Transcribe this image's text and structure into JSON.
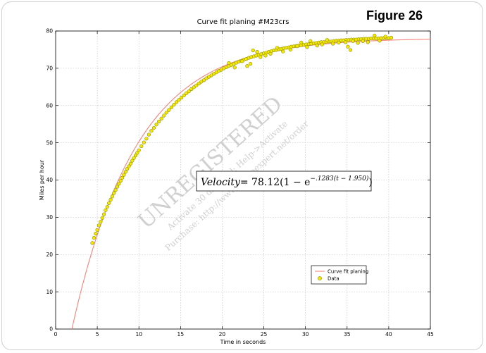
{
  "figure_label": "Figure 26",
  "chart_data": {
    "type": "scatter",
    "title": "Curve fit planing #M23crs",
    "xlabel": "Time in seconds",
    "ylabel": "Miles per hour",
    "xlim": [
      0,
      45
    ],
    "ylim": [
      0,
      80
    ],
    "xticks": [
      0,
      5,
      10,
      15,
      20,
      25,
      30,
      35,
      40,
      45
    ],
    "yticks": [
      0,
      10,
      20,
      30,
      40,
      50,
      60,
      70,
      80
    ],
    "grid": true,
    "legend_position": "lower-right",
    "fit": {
      "name": "Curve fit planing",
      "model": "Velocity = 78.12(1 - e^(-.1283(t - 1.950)))",
      "a": 78.12,
      "k": 0.1283,
      "t0": 1.95,
      "x_range": [
        1.95,
        45
      ],
      "color": "#f4837b"
    },
    "series": [
      {
        "name": "Data",
        "marker_fill": "#f4e800",
        "marker_edge": "#8a8a00",
        "points": [
          [
            4.4,
            23.1
          ],
          [
            4.6,
            24.5
          ],
          [
            4.8,
            25.6
          ],
          [
            5.0,
            26.6
          ],
          [
            5.2,
            27.8
          ],
          [
            5.4,
            28.8
          ],
          [
            5.6,
            29.8
          ],
          [
            5.8,
            30.8
          ],
          [
            6.0,
            31.9
          ],
          [
            6.2,
            32.8
          ],
          [
            6.4,
            33.8
          ],
          [
            6.6,
            34.7
          ],
          [
            6.8,
            35.6
          ],
          [
            7.0,
            36.5
          ],
          [
            7.2,
            37.3
          ],
          [
            7.4,
            38.2
          ],
          [
            7.6,
            39.0
          ],
          [
            7.8,
            39.8
          ],
          [
            8.0,
            40.6
          ],
          [
            8.2,
            41.4
          ],
          [
            8.4,
            42.2
          ],
          [
            8.6,
            43.0
          ],
          [
            8.8,
            43.7
          ],
          [
            9.0,
            44.4
          ],
          [
            9.2,
            45.2
          ],
          [
            9.4,
            45.9
          ],
          [
            9.6,
            46.6
          ],
          [
            9.8,
            47.3
          ],
          [
            10.0,
            48.0
          ],
          [
            10.3,
            49.1
          ],
          [
            10.6,
            50.1
          ],
          [
            10.9,
            51.1
          ],
          [
            11.2,
            52.2
          ],
          [
            11.5,
            53.2
          ],
          [
            11.8,
            54.0
          ],
          [
            12.1,
            54.9
          ],
          [
            12.4,
            55.7
          ],
          [
            12.7,
            56.5
          ],
          [
            13.0,
            57.3
          ],
          [
            13.3,
            58.1
          ],
          [
            13.6,
            58.8
          ],
          [
            13.9,
            59.5
          ],
          [
            14.2,
            60.2
          ],
          [
            14.5,
            60.9
          ],
          [
            14.8,
            61.5
          ],
          [
            15.1,
            62.1
          ],
          [
            15.4,
            62.7
          ],
          [
            15.7,
            63.3
          ],
          [
            16.0,
            63.8
          ],
          [
            16.3,
            64.4
          ],
          [
            16.6,
            64.9
          ],
          [
            16.9,
            65.4
          ],
          [
            17.2,
            65.9
          ],
          [
            17.5,
            66.4
          ],
          [
            17.8,
            66.8
          ],
          [
            18.1,
            67.3
          ],
          [
            18.4,
            67.7
          ],
          [
            18.7,
            68.1
          ],
          [
            19.0,
            68.5
          ],
          [
            19.3,
            68.9
          ],
          [
            19.6,
            69.3
          ],
          [
            19.9,
            69.6
          ],
          [
            20.2,
            70.0
          ],
          [
            20.5,
            70.3
          ],
          [
            20.8,
            70.6
          ],
          [
            21.1,
            70.9
          ],
          [
            21.4,
            71.2
          ],
          [
            21.7,
            71.5
          ],
          [
            22.0,
            71.8
          ],
          [
            22.3,
            72.0
          ],
          [
            22.6,
            72.3
          ],
          [
            22.9,
            72.5
          ],
          [
            23.2,
            72.8
          ],
          [
            23.5,
            73.0
          ],
          [
            23.8,
            73.2
          ],
          [
            24.1,
            73.4
          ],
          [
            24.4,
            73.6
          ],
          [
            24.7,
            73.8
          ],
          [
            25.0,
            74.0
          ],
          [
            25.3,
            74.2
          ],
          [
            25.6,
            74.4
          ],
          [
            25.9,
            74.6
          ],
          [
            26.2,
            74.8
          ],
          [
            26.5,
            74.9
          ],
          [
            26.8,
            75.1
          ],
          [
            27.1,
            75.2
          ],
          [
            27.4,
            75.4
          ],
          [
            27.7,
            75.5
          ],
          [
            28.0,
            75.6
          ],
          [
            28.3,
            75.8
          ],
          [
            28.6,
            75.9
          ],
          [
            28.9,
            76.0
          ],
          [
            29.2,
            76.1
          ],
          [
            29.5,
            76.2
          ],
          [
            29.8,
            76.3
          ],
          [
            30.1,
            76.4
          ],
          [
            30.4,
            76.5
          ],
          [
            30.7,
            76.6
          ],
          [
            31.0,
            76.7
          ],
          [
            31.3,
            76.8
          ],
          [
            31.6,
            76.9
          ],
          [
            31.9,
            77.0
          ],
          [
            32.2,
            77.0
          ],
          [
            32.5,
            77.1
          ],
          [
            32.8,
            77.2
          ],
          [
            33.1,
            77.2
          ],
          [
            33.4,
            77.3
          ],
          [
            33.7,
            77.4
          ],
          [
            34.0,
            77.4
          ],
          [
            34.3,
            77.5
          ],
          [
            34.6,
            77.5
          ],
          [
            34.9,
            77.6
          ],
          [
            35.2,
            77.6
          ],
          [
            35.5,
            77.7
          ],
          [
            35.8,
            77.7
          ],
          [
            36.1,
            77.7
          ],
          [
            36.4,
            77.8
          ],
          [
            36.7,
            77.8
          ],
          [
            37.0,
            77.9
          ],
          [
            37.3,
            77.9
          ],
          [
            37.6,
            77.9
          ],
          [
            37.9,
            78.0
          ],
          [
            38.2,
            78.0
          ],
          [
            38.5,
            78.0
          ],
          [
            38.8,
            78.0
          ],
          [
            39.1,
            78.1
          ],
          [
            39.4,
            78.1
          ],
          [
            39.7,
            78.1
          ],
          [
            40.0,
            78.1
          ],
          [
            40.3,
            78.2
          ],
          [
            20.8,
            71.4
          ],
          [
            21.5,
            70.2
          ],
          [
            22.4,
            71.9
          ],
          [
            23.0,
            70.6
          ],
          [
            23.4,
            71.2
          ],
          [
            23.7,
            74.8
          ],
          [
            24.2,
            74.4
          ],
          [
            24.6,
            73.0
          ],
          [
            25.2,
            73.4
          ],
          [
            25.8,
            73.9
          ],
          [
            26.6,
            75.5
          ],
          [
            27.3,
            74.5
          ],
          [
            28.2,
            75.0
          ],
          [
            29.0,
            75.9
          ],
          [
            29.5,
            76.9
          ],
          [
            30.2,
            75.7
          ],
          [
            30.6,
            77.3
          ],
          [
            31.4,
            76.1
          ],
          [
            32.0,
            76.4
          ],
          [
            32.6,
            77.6
          ],
          [
            33.3,
            76.6
          ],
          [
            34.0,
            76.9
          ],
          [
            34.8,
            77.0
          ],
          [
            35.1,
            75.8
          ],
          [
            35.4,
            74.9
          ],
          [
            35.7,
            77.3
          ],
          [
            36.3,
            76.8
          ],
          [
            36.9,
            77.3
          ],
          [
            37.5,
            77.0
          ],
          [
            38.3,
            78.8
          ],
          [
            38.9,
            77.4
          ],
          [
            39.6,
            78.5
          ]
        ]
      }
    ],
    "annotations": [
      {
        "kind": "equation",
        "label": "Velocity",
        "equals": "= 78.12(1 − e",
        "exponent": "−.1283(t − 1.950)",
        "close": ")"
      }
    ],
    "watermark": {
      "main": "UNREGISTERED",
      "line1": "Activate 30 day trial: Help->Activate",
      "line2": "Purchase: http://www.curveexpert.net/order"
    }
  }
}
